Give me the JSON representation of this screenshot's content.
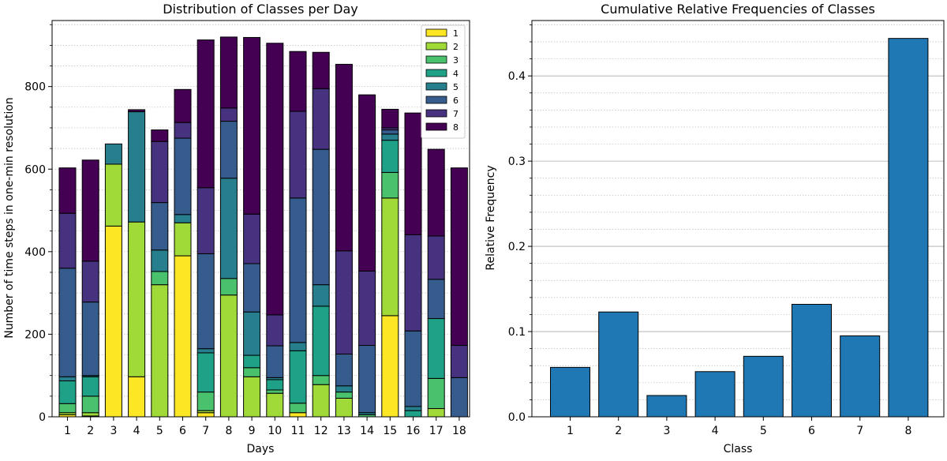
{
  "chart_data": [
    {
      "type": "bar",
      "stacked": true,
      "title": "Distribution of Classes per Day",
      "xlabel": "Days",
      "ylabel": "Number of time steps in one-min resolution",
      "ylim": [
        0,
        960
      ],
      "yticks": [
        0,
        200,
        400,
        600,
        800
      ],
      "ytick_labels": [
        "0",
        "200",
        "400",
        "600",
        "800"
      ],
      "grid": "horizontal-dotted",
      "legend_position": "top-right",
      "categories": [
        "1",
        "2",
        "3",
        "4",
        "5",
        "6",
        "7",
        "8",
        "9",
        "10",
        "11",
        "12",
        "13",
        "14",
        "15",
        "16",
        "17",
        "18"
      ],
      "series": [
        {
          "name": "1",
          "color": "#fde725",
          "values": [
            5,
            2,
            462,
            97,
            0,
            390,
            10,
            0,
            0,
            0,
            10,
            0,
            0,
            0,
            245,
            0,
            0,
            0
          ]
        },
        {
          "name": "2",
          "color": "#a0da39",
          "values": [
            5,
            8,
            150,
            375,
            320,
            80,
            5,
            295,
            97,
            57,
            0,
            78,
            45,
            0,
            285,
            0,
            20,
            0
          ]
        },
        {
          "name": "3",
          "color": "#4ac16d",
          "values": [
            22,
            40,
            0,
            0,
            32,
            0,
            45,
            40,
            22,
            8,
            23,
            22,
            15,
            5,
            62,
            0,
            73,
            0
          ]
        },
        {
          "name": "4",
          "color": "#1fa187",
          "values": [
            55,
            47,
            0,
            0,
            0,
            0,
            95,
            0,
            30,
            25,
            127,
            168,
            0,
            0,
            78,
            15,
            145,
            0
          ]
        },
        {
          "name": "5",
          "color": "#277f8e",
          "values": [
            10,
            3,
            49,
            267,
            52,
            20,
            10,
            243,
            105,
            5,
            20,
            52,
            15,
            5,
            15,
            10,
            0,
            0
          ]
        },
        {
          "name": "6",
          "color": "#365c8d",
          "values": [
            263,
            178,
            0,
            0,
            115,
            185,
            230,
            138,
            117,
            77,
            350,
            328,
            77,
            163,
            10,
            183,
            95,
            95
          ]
        },
        {
          "name": "7",
          "color": "#46327e",
          "values": [
            133,
            99,
            0,
            0,
            148,
            38,
            160,
            32,
            120,
            75,
            210,
            147,
            250,
            180,
            5,
            233,
            105,
            78
          ]
        },
        {
          "name": "8",
          "color": "#440154",
          "values": [
            110,
            245,
            0,
            5,
            28,
            80,
            358,
            172,
            428,
            658,
            145,
            88,
            452,
            427,
            45,
            295,
            210,
            430
          ]
        }
      ]
    },
    {
      "type": "bar",
      "title": "Cumulative Relative Frequencies of Classes",
      "xlabel": "Class",
      "ylabel": "Relative Frequency",
      "ylim": [
        0,
        0.465
      ],
      "yticks": [
        0.0,
        0.1,
        0.2,
        0.3,
        0.4
      ],
      "ytick_labels": [
        "0.0",
        "0.1",
        "0.2",
        "0.3",
        "0.4"
      ],
      "grid": "horizontal-dotted",
      "bar_color": "#1f77b4",
      "categories": [
        "1",
        "2",
        "3",
        "4",
        "5",
        "6",
        "7",
        "8"
      ],
      "values": [
        0.058,
        0.123,
        0.025,
        0.053,
        0.071,
        0.132,
        0.095,
        0.444
      ]
    }
  ]
}
